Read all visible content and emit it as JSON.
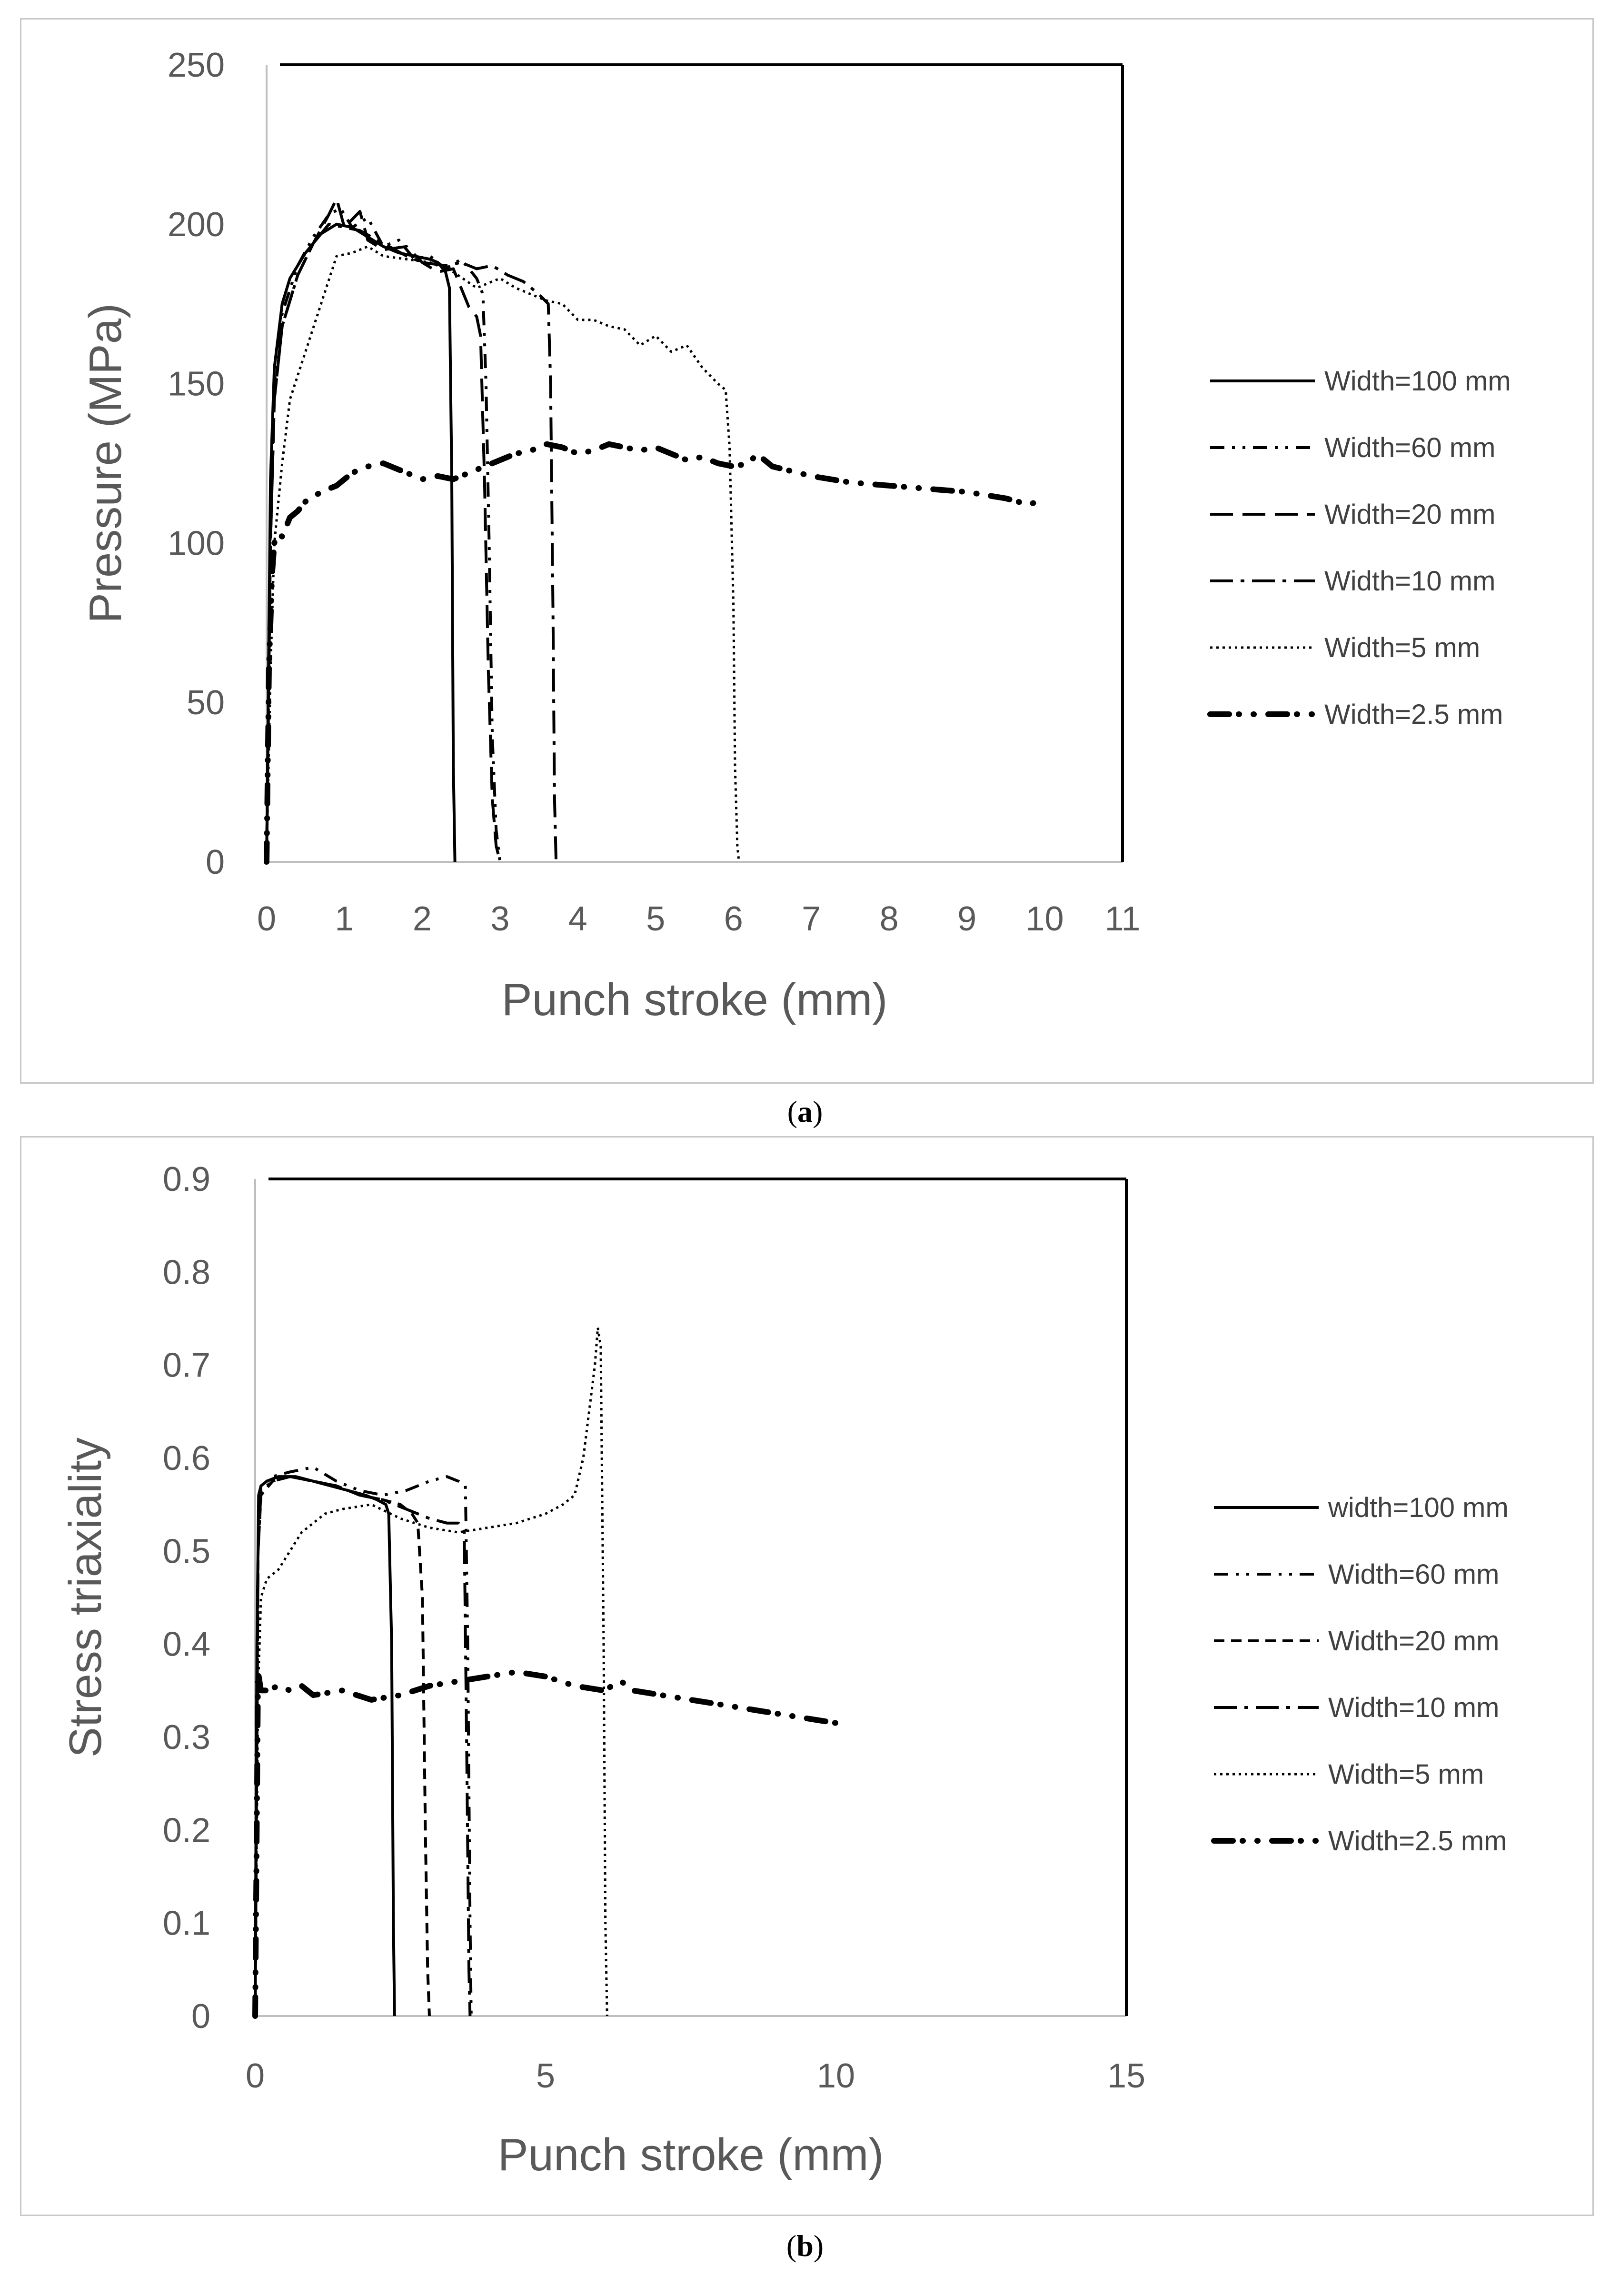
{
  "captions": {
    "a": {
      "open": "(",
      "letter": "a",
      "close": ")"
    },
    "b": {
      "open": "(",
      "letter": "b",
      "close": ")"
    }
  },
  "chart_data": [
    {
      "id": "a",
      "type": "line",
      "title": "",
      "xlabel": "Punch stroke (mm)",
      "ylabel": "Pressure (MPa)",
      "xlim": [
        0,
        11
      ],
      "ylim": [
        0,
        250
      ],
      "xticks": [
        0,
        1,
        2,
        3,
        4,
        5,
        6,
        7,
        8,
        9,
        10,
        11
      ],
      "yticks": [
        0,
        50,
        100,
        150,
        200,
        250
      ],
      "grid": false,
      "legend_position": "right",
      "series": [
        {
          "name": "Width=100 mm",
          "style": "solid",
          "x": [
            0,
            0.05,
            0.1,
            0.2,
            0.3,
            0.5,
            0.7,
            0.9,
            1.1,
            1.3,
            1.5,
            1.7,
            1.9,
            2.1,
            2.2,
            2.3,
            2.35,
            2.38,
            2.4,
            2.42
          ],
          "y": [
            0,
            120,
            155,
            175,
            183,
            191,
            197,
            200,
            199,
            196,
            193,
            191,
            190,
            189,
            188,
            185,
            180,
            120,
            30,
            0
          ]
        },
        {
          "name": "Width=60 mm",
          "style": "dashdotdot",
          "x": [
            0,
            0.05,
            0.1,
            0.2,
            0.4,
            0.6,
            0.8,
            0.95,
            1.1,
            1.3,
            1.5,
            1.7,
            1.9,
            2.1,
            2.3,
            2.5,
            2.7,
            2.78,
            2.82,
            2.86,
            2.9,
            2.95,
            3.0
          ],
          "y": [
            0,
            110,
            150,
            172,
            187,
            196,
            203,
            205,
            199,
            202,
            193,
            195,
            189,
            190,
            186,
            189,
            183,
            178,
            150,
            100,
            40,
            10,
            0
          ]
        },
        {
          "name": "Width=20 mm",
          "style": "longdash",
          "x": [
            0,
            0.05,
            0.1,
            0.2,
            0.4,
            0.6,
            0.8,
            0.9,
            1.0,
            1.2,
            1.3,
            1.5,
            1.8,
            2.0,
            2.2,
            2.4,
            2.5,
            2.6,
            2.7,
            2.75,
            2.8,
            2.85,
            2.9,
            2.95,
            3.0
          ],
          "y": [
            0,
            100,
            145,
            168,
            184,
            194,
            203,
            208,
            199,
            204,
            195,
            192,
            193,
            188,
            185,
            186,
            180,
            174,
            171,
            165,
            120,
            60,
            20,
            5,
            0
          ]
        },
        {
          "name": "Width=10 mm",
          "style": "dashdot",
          "x": [
            0,
            0.05,
            0.1,
            0.2,
            0.4,
            0.6,
            0.8,
            1.0,
            1.2,
            1.5,
            1.8,
            2.0,
            2.3,
            2.5,
            2.7,
            2.9,
            3.1,
            3.3,
            3.5,
            3.62,
            3.65,
            3.68,
            3.7,
            3.72
          ],
          "y": [
            0,
            100,
            145,
            168,
            184,
            194,
            200,
            199,
            198,
            194,
            190,
            188,
            187,
            188,
            186,
            187,
            184,
            182,
            178,
            175,
            150,
            80,
            20,
            0
          ]
        },
        {
          "name": "Width=5 mm",
          "style": "dotted",
          "x": [
            0,
            0.05,
            0.1,
            0.2,
            0.3,
            0.5,
            0.7,
            0.9,
            1.1,
            1.3,
            1.5,
            1.8,
            2.1,
            2.4,
            2.7,
            3.0,
            3.2,
            3.4,
            3.6,
            3.8,
            4.0,
            4.2,
            4.4,
            4.6,
            4.8,
            5.0,
            5.2,
            5.4,
            5.6,
            5.8,
            5.9,
            5.95,
            6.0,
            6.02,
            6.05,
            6.07
          ],
          "y": [
            0,
            60,
            100,
            125,
            145,
            160,
            175,
            190,
            191,
            193,
            190,
            189,
            188,
            185,
            180,
            183,
            180,
            178,
            176,
            175,
            170,
            170,
            168,
            167,
            162,
            165,
            160,
            162,
            155,
            150,
            148,
            130,
            80,
            30,
            5,
            0
          ]
        },
        {
          "name": "Width=2.5 mm",
          "style": "boldsparse",
          "x": [
            0,
            0.03,
            0.07,
            0.1,
            0.15,
            0.2,
            0.25,
            0.3,
            0.4,
            0.5,
            0.7,
            0.9,
            1.0,
            1.1,
            1.3,
            1.5,
            1.7,
            1.9,
            2.0,
            2.2,
            2.4,
            2.6,
            2.8,
            3.0,
            3.2,
            3.4,
            3.6,
            3.8,
            4.0,
            4.2,
            4.4,
            4.6,
            4.8,
            5.0,
            5.2,
            5.4,
            5.6,
            5.8,
            6.0,
            6.2,
            6.3,
            6.5,
            7.0,
            7.5,
            8.0,
            8.5,
            9.0,
            9.5,
            9.8,
            10.0
          ],
          "y": [
            0,
            60,
            90,
            100,
            103,
            102,
            105,
            108,
            110,
            113,
            116,
            118,
            120,
            122,
            124,
            125,
            123,
            121,
            120,
            121,
            120,
            122,
            124,
            126,
            128,
            129,
            131,
            130,
            128,
            129,
            131,
            130,
            129,
            130,
            128,
            126,
            127,
            125,
            124,
            125,
            128,
            124,
            121,
            119,
            118,
            117,
            116,
            114,
            112,
            114
          ]
        }
      ]
    },
    {
      "id": "b",
      "type": "line",
      "title": "",
      "xlabel": "Punch stroke (mm)",
      "ylabel": "Stress triaxiality",
      "xlim": [
        0,
        15
      ],
      "ylim": [
        0,
        0.9
      ],
      "xticks": [
        0,
        5,
        10,
        15
      ],
      "yticks": [
        0,
        0.1,
        0.2,
        0.3,
        0.4,
        0.5,
        0.6,
        0.7,
        0.8,
        0.9
      ],
      "grid": false,
      "legend_position": "right",
      "series": [
        {
          "name": "width=100 mm",
          "style": "solid",
          "x": [
            0,
            0.03,
            0.06,
            0.1,
            0.2,
            0.4,
            0.7,
            1.0,
            1.3,
            1.6,
            1.9,
            2.1,
            2.25,
            2.3,
            2.35,
            2.38,
            2.4
          ],
          "y": [
            0,
            0.4,
            0.56,
            0.57,
            0.575,
            0.58,
            0.58,
            0.575,
            0.57,
            0.565,
            0.56,
            0.555,
            0.55,
            0.54,
            0.4,
            0.1,
            0
          ]
        },
        {
          "name": "Width=60 mm",
          "style": "dashdotdot",
          "x": [
            0,
            0.05,
            0.1,
            0.3,
            0.6,
            1.0,
            1.4,
            1.8,
            2.2,
            2.6,
            3.0,
            3.3,
            3.5,
            3.62,
            3.66,
            3.7,
            3.72
          ],
          "y": [
            0,
            0.5,
            0.57,
            0.58,
            0.585,
            0.59,
            0.575,
            0.565,
            0.56,
            0.565,
            0.575,
            0.58,
            0.575,
            0.57,
            0.4,
            0.1,
            0
          ]
        },
        {
          "name": "Width=20 mm",
          "style": "dashed",
          "x": [
            0,
            0.05,
            0.1,
            0.3,
            0.6,
            1.0,
            1.4,
            1.8,
            2.2,
            2.5,
            2.7,
            2.8,
            2.88,
            2.93,
            2.97,
            3.0
          ],
          "y": [
            0,
            0.5,
            0.56,
            0.575,
            0.58,
            0.575,
            0.57,
            0.56,
            0.555,
            0.55,
            0.54,
            0.53,
            0.45,
            0.2,
            0.05,
            0
          ]
        },
        {
          "name": "Width=10 mm",
          "style": "dashdot",
          "x": [
            0,
            0.05,
            0.1,
            0.3,
            0.6,
            1.0,
            1.4,
            1.8,
            2.2,
            2.6,
            3.0,
            3.3,
            3.5,
            3.6,
            3.64,
            3.68,
            3.7
          ],
          "y": [
            0,
            0.5,
            0.565,
            0.575,
            0.58,
            0.575,
            0.57,
            0.56,
            0.555,
            0.545,
            0.535,
            0.53,
            0.53,
            0.52,
            0.3,
            0.05,
            0
          ]
        },
        {
          "name": "Width=5 mm",
          "style": "dotted",
          "x": [
            0,
            0.05,
            0.1,
            0.2,
            0.4,
            0.6,
            0.8,
            1.0,
            1.2,
            1.5,
            2.0,
            2.5,
            3.0,
            3.5,
            4.0,
            4.5,
            5.0,
            5.3,
            5.5,
            5.65,
            5.75,
            5.85,
            5.9,
            5.95,
            6.0,
            6.03,
            6.06
          ],
          "y": [
            0,
            0.35,
            0.45,
            0.47,
            0.48,
            0.5,
            0.52,
            0.53,
            0.54,
            0.545,
            0.55,
            0.535,
            0.525,
            0.52,
            0.525,
            0.53,
            0.54,
            0.55,
            0.56,
            0.6,
            0.65,
            0.7,
            0.74,
            0.72,
            0.4,
            0.1,
            0
          ]
        },
        {
          "name": "Width=2.5 mm",
          "style": "boldsparse",
          "x": [
            0,
            0.05,
            0.1,
            0.2,
            0.4,
            0.6,
            0.8,
            1.0,
            1.5,
            2.0,
            2.5,
            3.0,
            3.5,
            4.0,
            4.5,
            5.0,
            5.5,
            6.0,
            6.3,
            6.5,
            7.0,
            7.5,
            8.0,
            8.5,
            9.0,
            9.5,
            10.0
          ],
          "y": [
            0,
            0.37,
            0.35,
            0.35,
            0.355,
            0.35,
            0.355,
            0.345,
            0.35,
            0.34,
            0.345,
            0.355,
            0.36,
            0.365,
            0.37,
            0.365,
            0.355,
            0.35,
            0.36,
            0.35,
            0.345,
            0.34,
            0.335,
            0.33,
            0.325,
            0.32,
            0.315
          ]
        }
      ]
    }
  ]
}
